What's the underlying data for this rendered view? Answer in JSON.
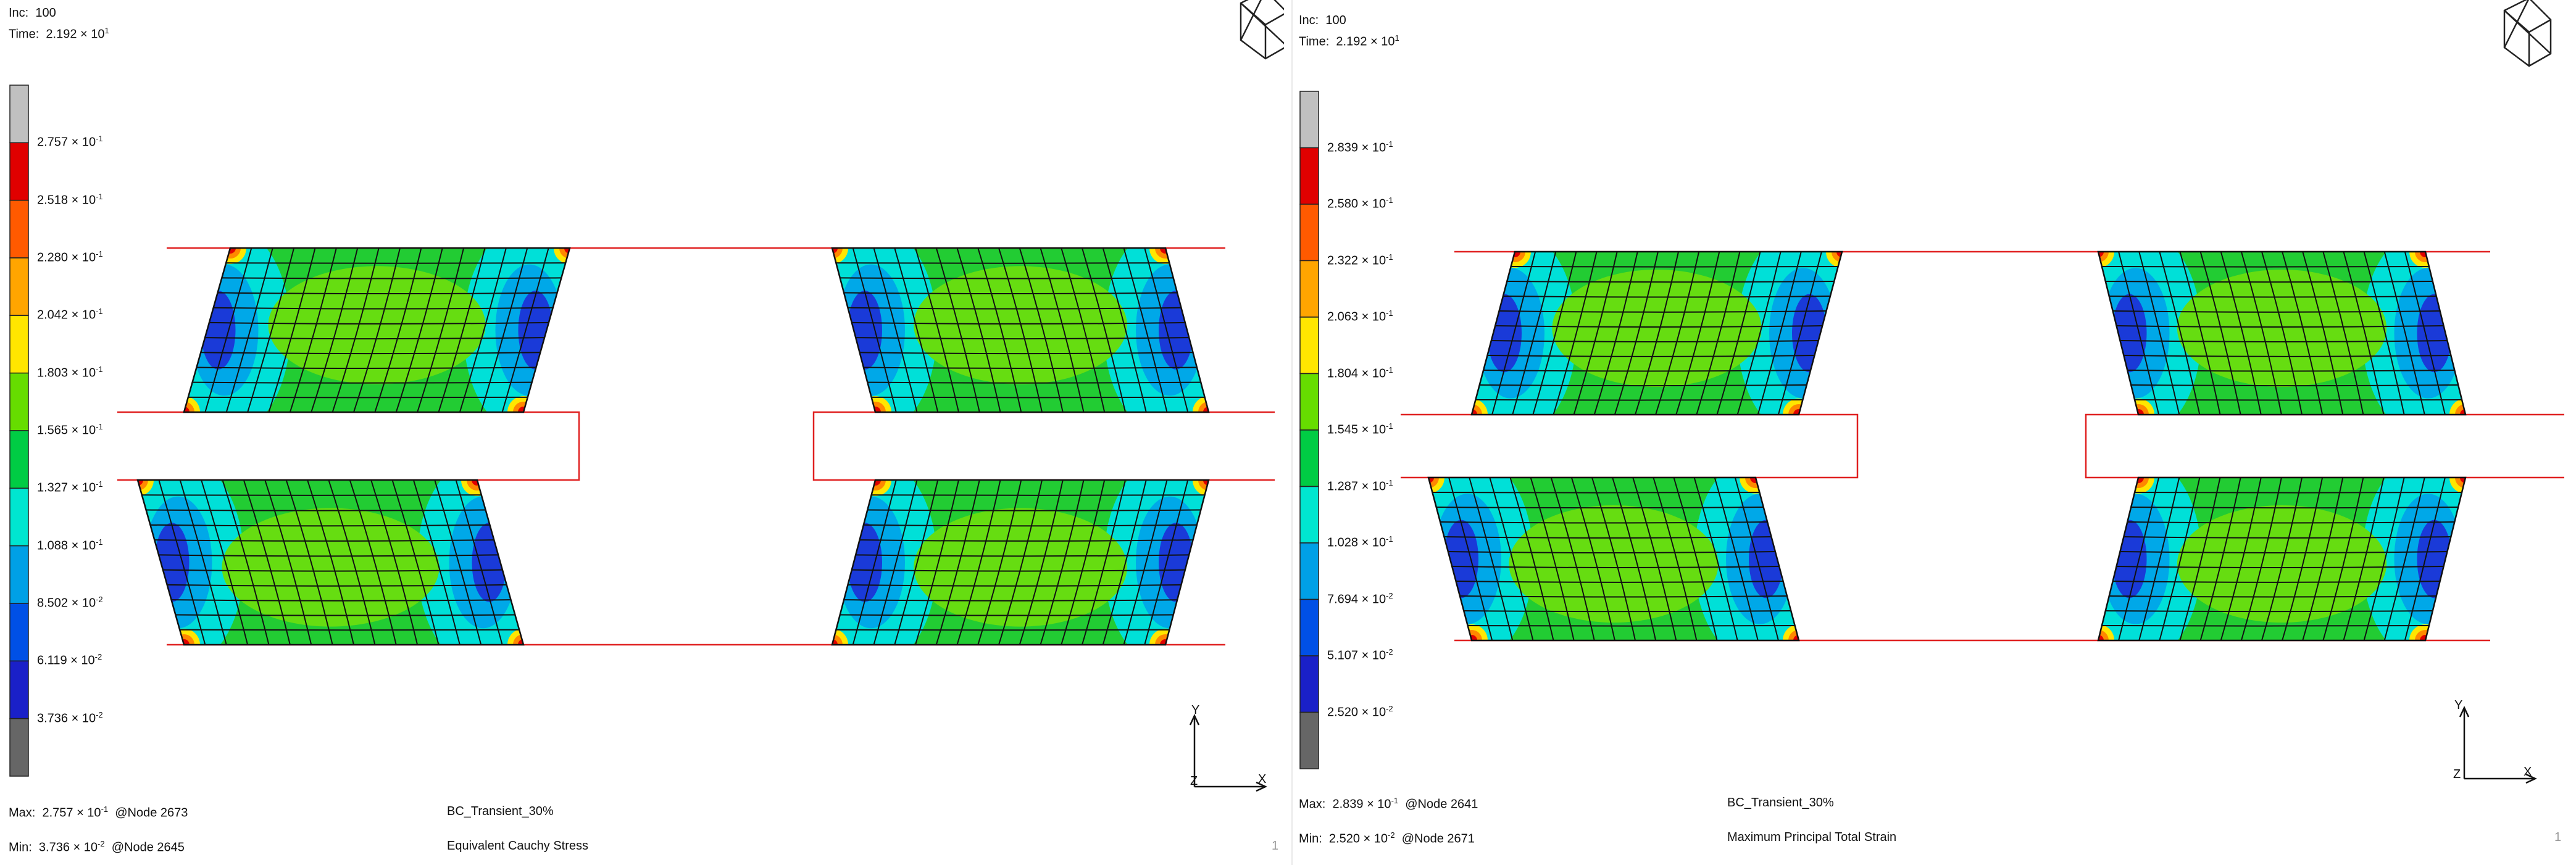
{
  "panels": [
    {
      "id": "left",
      "inc_label": "Inc:",
      "inc_value": "100",
      "time_label": "Time:",
      "time_value": "2.192 × 10",
      "time_exp": "1",
      "legend_labels": [
        {
          "m": "2.757",
          "e": "-1"
        },
        {
          "m": "2.518",
          "e": "-1"
        },
        {
          "m": "2.280",
          "e": "-1"
        },
        {
          "m": "2.042",
          "e": "-1"
        },
        {
          "m": "1.803",
          "e": "-1"
        },
        {
          "m": "1.565",
          "e": "-1"
        },
        {
          "m": "1.327",
          "e": "-1"
        },
        {
          "m": "1.088",
          "e": "-1"
        },
        {
          "m": "8.502",
          "e": "-2"
        },
        {
          "m": "6.119",
          "e": "-2"
        },
        {
          "m": "3.736",
          "e": "-2"
        }
      ],
      "max_label": "Max:",
      "max_value": "2.757 × 10",
      "max_exp": "-1",
      "max_node": "@Node  2673",
      "min_label": "Min:",
      "min_value": "3.736 × 10",
      "min_exp": "-2",
      "min_node": "@Node  2645",
      "job_name": "BC_Transient_30%",
      "quantity": "Equivalent Cauchy Stress",
      "page_no": "1"
    },
    {
      "id": "right",
      "inc_label": "Inc:",
      "inc_value": "100",
      "time_label": "Time:",
      "time_value": "2.192 × 10",
      "time_exp": "1",
      "legend_labels": [
        {
          "m": "2.839",
          "e": "-1"
        },
        {
          "m": "2.580",
          "e": "-1"
        },
        {
          "m": "2.322",
          "e": "-1"
        },
        {
          "m": "2.063",
          "e": "-1"
        },
        {
          "m": "1.804",
          "e": "-1"
        },
        {
          "m": "1.545",
          "e": "-1"
        },
        {
          "m": "1.287",
          "e": "-1"
        },
        {
          "m": "1.028",
          "e": "-1"
        },
        {
          "m": "7.694",
          "e": "-2"
        },
        {
          "m": "5.107",
          "e": "-2"
        },
        {
          "m": "2.520",
          "e": "-2"
        }
      ],
      "max_label": "Max:",
      "max_value": "2.839 × 10",
      "max_exp": "-1",
      "max_node": "@Node  2641",
      "min_label": "Min:",
      "min_value": "2.520 × 10",
      "min_exp": "-2",
      "min_node": "@Node  2671",
      "job_name": "BC_Transient_30%",
      "quantity": "Maximum Principal Total Strain",
      "page_no": "1"
    }
  ],
  "axis_labels": {
    "y": "Y",
    "x": "X",
    "z": "Z"
  },
  "legend_colors": [
    "#c0c0c0",
    "#e00000",
    "#ff5a00",
    "#ffa500",
    "#ffe600",
    "#66dd00",
    "#00cc44",
    "#00e6d0",
    "#00a0e6",
    "#0050e6",
    "#1a20c8",
    "#666666"
  ],
  "icons": {
    "view_cube": "view-orientation-cube-icon"
  }
}
